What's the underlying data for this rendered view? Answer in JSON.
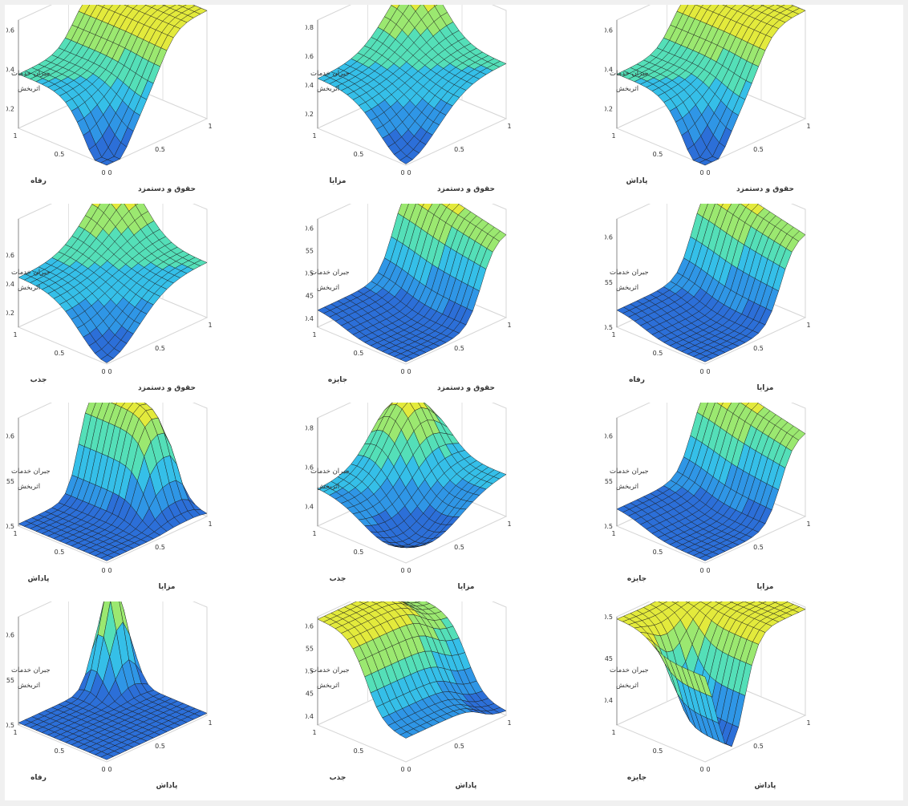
{
  "figure": {
    "grid": {
      "rows": 4,
      "cols": 3
    },
    "colormap": [
      "#2c6fd8",
      "#2f96e6",
      "#35bfe8",
      "#54dfb8",
      "#9be870",
      "#e3ea3c"
    ],
    "mesh_color": "#1a1a1a",
    "zlabel": [
      "جبران خدمات",
      "اثربخش"
    ]
  },
  "chart_data": [
    {
      "type": "surface",
      "row": 0,
      "col": 0,
      "shape": "valley",
      "xlabel": "حقوق و دستمزد",
      "ylabel": "رفاه",
      "x_ticks": [
        "0",
        "0.5",
        "1"
      ],
      "y_ticks": [
        "0",
        "0.5",
        "1"
      ],
      "z_ticks": [
        "0.2",
        "0.4",
        "0.6"
      ],
      "zlim": [
        0.1,
        0.65
      ]
    },
    {
      "type": "surface",
      "row": 0,
      "col": 1,
      "shape": "peak_valley",
      "xlabel": "حقوق و دستمزد",
      "ylabel": "مزایا",
      "x_ticks": [
        "0",
        "0.5",
        "1"
      ],
      "y_ticks": [
        "0",
        "0.5",
        "1"
      ],
      "z_ticks": [
        "0.2",
        "0.4",
        "0.6",
        "0.8"
      ],
      "zlim": [
        0.1,
        0.85
      ]
    },
    {
      "type": "surface",
      "row": 0,
      "col": 2,
      "shape": "valley",
      "xlabel": "حقوق و دستمزد",
      "ylabel": "پاداش",
      "x_ticks": [
        "0",
        "0.5",
        "1"
      ],
      "y_ticks": [
        "0",
        "0.5",
        "1"
      ],
      "z_ticks": [
        "0.2",
        "0.4",
        "0.6"
      ],
      "zlim": [
        0.1,
        0.65
      ]
    },
    {
      "type": "surface",
      "row": 1,
      "col": 0,
      "shape": "peak_valley",
      "xlabel": "حقوق و دستمزد",
      "ylabel": "جذب",
      "x_ticks": [
        "0",
        "0.5",
        "1"
      ],
      "y_ticks": [
        "0",
        "0.5",
        "1"
      ],
      "z_ticks": [
        "0.2",
        "0.4",
        "0.6"
      ],
      "zlim": [
        0.1,
        0.85
      ]
    },
    {
      "type": "surface",
      "row": 1,
      "col": 1,
      "shape": "step",
      "xlabel": "حقوق و دستمزد",
      "ylabel": "جایزه",
      "x_ticks": [
        "0",
        "0.5",
        "1"
      ],
      "y_ticks": [
        "0",
        "0.5",
        "1"
      ],
      "z_ticks": [
        "0.4",
        "0.45",
        "0.5",
        "0.55",
        "0.6"
      ],
      "zlim": [
        0.38,
        0.62
      ]
    },
    {
      "type": "surface",
      "row": 1,
      "col": 2,
      "shape": "step",
      "xlabel": "مزایا",
      "ylabel": "رفاه",
      "x_ticks": [
        "0",
        "0.5",
        "1"
      ],
      "y_ticks": [
        "0",
        "0.5",
        "1"
      ],
      "z_ticks": [
        "0.5",
        "0.55",
        "0.6"
      ],
      "zlim": [
        0.5,
        0.62
      ]
    },
    {
      "type": "surface",
      "row": 2,
      "col": 0,
      "shape": "ridge",
      "xlabel": "مزایا",
      "ylabel": "پاداش",
      "x_ticks": [
        "0",
        "0.5",
        "1"
      ],
      "y_ticks": [
        "0",
        "0.5",
        "1"
      ],
      "z_ticks": [
        "0.5",
        "0.55",
        "0.6"
      ],
      "zlim": [
        0.5,
        0.62
      ]
    },
    {
      "type": "surface",
      "row": 2,
      "col": 1,
      "shape": "peak_dip",
      "xlabel": "مزایا",
      "ylabel": "جذب",
      "x_ticks": [
        "0",
        "0.5",
        "1"
      ],
      "y_ticks": [
        "0",
        "0.5",
        "1"
      ],
      "z_ticks": [
        "0.4",
        "0.6",
        "0.8"
      ],
      "zlim": [
        0.3,
        0.85
      ]
    },
    {
      "type": "surface",
      "row": 2,
      "col": 2,
      "shape": "step",
      "xlabel": "مزایا",
      "ylabel": "جایزه",
      "x_ticks": [
        "0",
        "0.5",
        "1"
      ],
      "y_ticks": [
        "0",
        "0.5",
        "1"
      ],
      "z_ticks": [
        "0.5",
        "0.55",
        "0.6"
      ],
      "zlim": [
        0.5,
        0.62
      ]
    },
    {
      "type": "surface",
      "row": 3,
      "col": 0,
      "shape": "spike",
      "xlabel": "پاداش",
      "ylabel": "رفاه",
      "x_ticks": [
        "0",
        "0.5",
        "1"
      ],
      "y_ticks": [
        "0",
        "0.5",
        "1"
      ],
      "z_ticks": [
        "0.5",
        "0.55",
        "0.6"
      ],
      "zlim": [
        0.5,
        0.62
      ]
    },
    {
      "type": "surface",
      "row": 3,
      "col": 1,
      "shape": "step_down",
      "xlabel": "پاداش",
      "ylabel": "جذب",
      "x_ticks": [
        "0",
        "0.5",
        "1"
      ],
      "y_ticks": [
        "0",
        "0.5",
        "1"
      ],
      "z_ticks": [
        "0.4",
        "0.45",
        "0.5",
        "0.55",
        "0.6"
      ],
      "zlim": [
        0.38,
        0.62
      ]
    },
    {
      "type": "surface",
      "row": 3,
      "col": 2,
      "shape": "trough",
      "xlabel": "پاداش",
      "ylabel": "جایزه",
      "x_ticks": [
        "0",
        "0.5",
        "1"
      ],
      "y_ticks": [
        "0",
        "0.5",
        "1"
      ],
      "z_ticks": [
        "0.4",
        "0.45",
        "0.5"
      ],
      "zlim": [
        0.37,
        0.5
      ]
    }
  ]
}
